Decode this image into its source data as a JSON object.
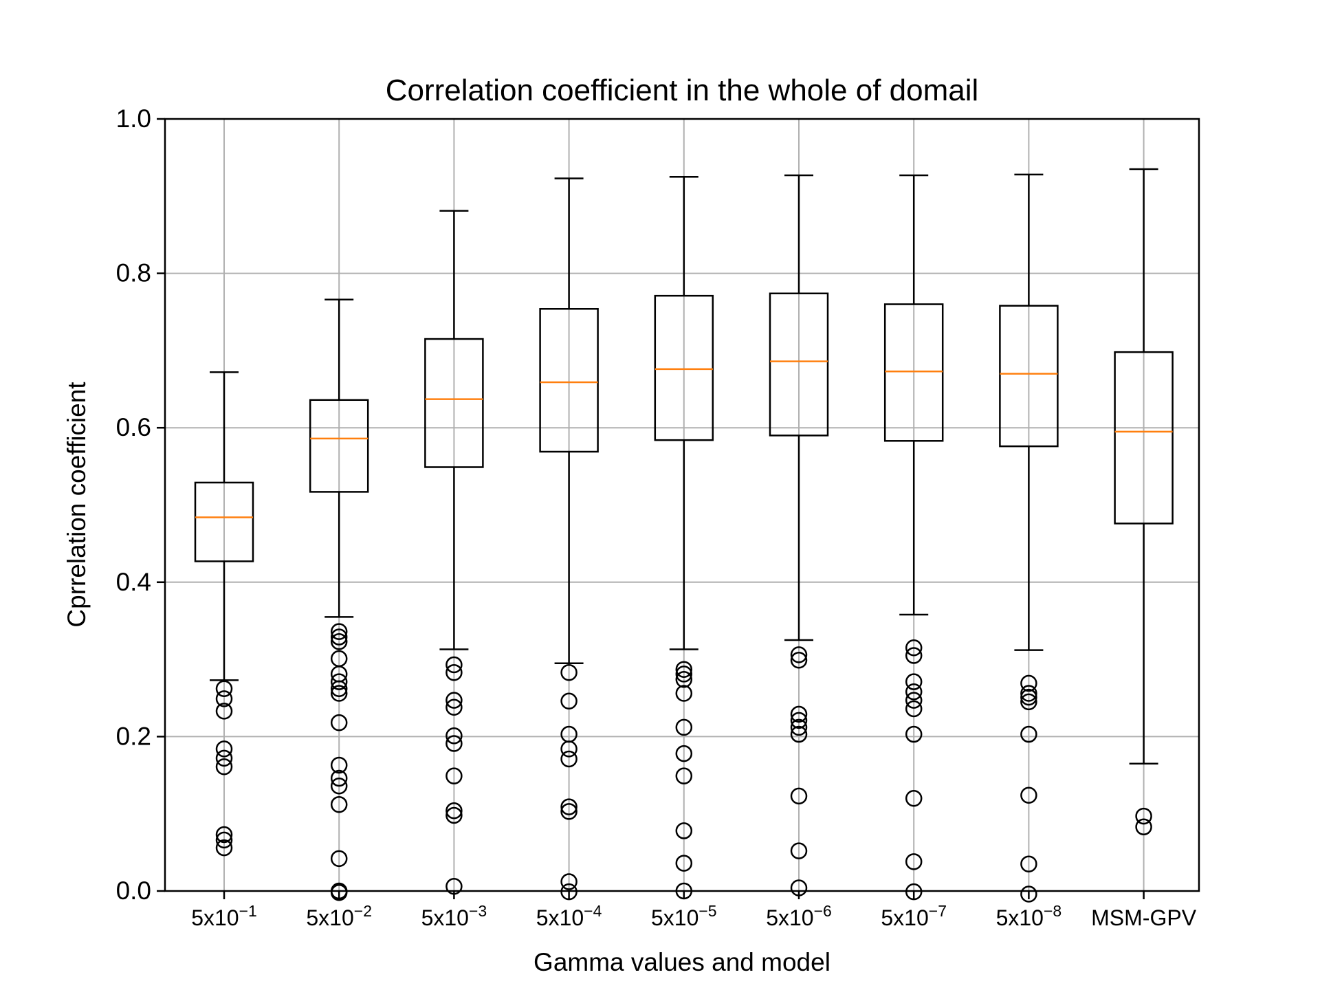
{
  "chart_data": {
    "type": "box",
    "title": "Correlation coefficient in the whole of domail",
    "xlabel": "Gamma values and model",
    "ylabel": "Cprrelation coefficient",
    "ylim": [
      0.0,
      1.0
    ],
    "yticks": [
      0.0,
      0.2,
      0.4,
      0.6,
      0.8,
      1.0
    ],
    "ytick_labels": [
      "0.0",
      "0.2",
      "0.4",
      "0.6",
      "0.8",
      "1.0"
    ],
    "grid": true,
    "colors": {
      "box": "#000000",
      "median": "#ff7f0e",
      "grid": "#b0b0b0"
    },
    "categories": [
      {
        "base": "5x10",
        "exp": "−1"
      },
      {
        "base": "5x10",
        "exp": "−2"
      },
      {
        "base": "5x10",
        "exp": "−3"
      },
      {
        "base": "5x10",
        "exp": "−4"
      },
      {
        "base": "5x10",
        "exp": "−5"
      },
      {
        "base": "5x10",
        "exp": "−6"
      },
      {
        "base": "5x10",
        "exp": "−7"
      },
      {
        "base": "5x10",
        "exp": "−8"
      },
      {
        "base": "MSM-GPV",
        "exp": ""
      }
    ],
    "boxes": [
      {
        "whislo": 0.273,
        "q1": 0.427,
        "med": 0.484,
        "q3": 0.529,
        "whishi": 0.672,
        "fliers": [
          0.262,
          0.249,
          0.233,
          0.184,
          0.172,
          0.161,
          0.073,
          0.066,
          0.056
        ]
      },
      {
        "whislo": 0.355,
        "q1": 0.517,
        "med": 0.586,
        "q3": 0.636,
        "whishi": 0.766,
        "fliers": [
          0.336,
          0.329,
          0.323,
          0.301,
          0.281,
          0.271,
          0.262,
          0.256,
          0.218,
          0.163,
          0.146,
          0.136,
          0.112,
          0.042,
          0.0,
          -0.002
        ]
      },
      {
        "whislo": 0.313,
        "q1": 0.549,
        "med": 0.637,
        "q3": 0.715,
        "whishi": 0.881,
        "fliers": [
          0.293,
          0.283,
          0.247,
          0.238,
          0.201,
          0.191,
          0.149,
          0.104,
          0.098,
          0.006
        ]
      },
      {
        "whislo": 0.295,
        "q1": 0.569,
        "med": 0.659,
        "q3": 0.754,
        "whishi": 0.923,
        "fliers": [
          0.283,
          0.246,
          0.203,
          0.184,
          0.171,
          0.109,
          0.103,
          0.012,
          -0.001
        ]
      },
      {
        "whislo": 0.313,
        "q1": 0.584,
        "med": 0.676,
        "q3": 0.771,
        "whishi": 0.925,
        "fliers": [
          0.287,
          0.281,
          0.274,
          0.256,
          0.212,
          0.178,
          0.149,
          0.078,
          0.036,
          0.0
        ]
      },
      {
        "whislo": 0.325,
        "q1": 0.59,
        "med": 0.686,
        "q3": 0.774,
        "whishi": 0.927,
        "fliers": [
          0.306,
          0.299,
          0.229,
          0.221,
          0.212,
          0.203,
          0.123,
          0.052,
          0.004
        ]
      },
      {
        "whislo": 0.358,
        "q1": 0.583,
        "med": 0.673,
        "q3": 0.76,
        "whishi": 0.927,
        "fliers": [
          0.315,
          0.305,
          0.271,
          0.258,
          0.247,
          0.236,
          0.203,
          0.12,
          0.038,
          -0.001
        ]
      },
      {
        "whislo": 0.312,
        "q1": 0.576,
        "med": 0.67,
        "q3": 0.758,
        "whishi": 0.928,
        "fliers": [
          0.269,
          0.256,
          0.251,
          0.245,
          0.203,
          0.124,
          0.035,
          -0.004
        ]
      },
      {
        "whislo": 0.165,
        "q1": 0.476,
        "med": 0.595,
        "q3": 0.698,
        "whishi": 0.935,
        "fliers": [
          0.097,
          0.083
        ]
      }
    ]
  }
}
